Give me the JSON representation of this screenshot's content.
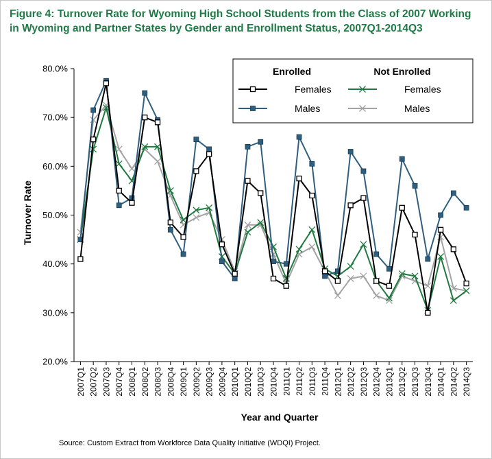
{
  "title": "Figure 4: Turnover Rate for Wyoming High School Students from the Class of 2007 Working in Wyoming and Partner States by Gender and Enrollment Status, 2007Q1-2014Q3",
  "source": "Source: Custom Extract from Workforce Data Quality Initiative (WDQI) Project.",
  "chart_data": {
    "type": "line",
    "xlabel": "Year and Quarter",
    "ylabel": "Turnover Rate",
    "ylim": [
      20,
      80
    ],
    "yticks": [
      "20.0%",
      "30.0%",
      "40.0%",
      "50.0%",
      "60.0%",
      "70.0%",
      "80.0%"
    ],
    "grid": false,
    "legend_placement": "top-right",
    "legend_groups": [
      "Enrolled",
      "Not Enrolled"
    ],
    "categories": [
      "2007Q1",
      "2007Q2",
      "2007Q3",
      "2007Q4",
      "2008Q1",
      "2008Q2",
      "2008Q3",
      "2008Q4",
      "2009Q1",
      "2009Q2",
      "2009Q3",
      "2009Q4",
      "2010Q1",
      "2010Q2",
      "2010Q3",
      "2010Q4",
      "2011Q1",
      "2011Q2",
      "2011Q3",
      "2011Q4",
      "2012Q1",
      "2012Q2",
      "2012Q3",
      "2012Q4",
      "2013Q1",
      "2013Q2",
      "2013Q3",
      "2013Q4",
      "2014Q1",
      "2014Q2",
      "2014Q3"
    ],
    "series": [
      {
        "name": "Females",
        "group": "Enrolled",
        "color": "#000000",
        "marker": "square-open",
        "values": [
          41.0,
          65.5,
          77.0,
          55.0,
          52.5,
          70.0,
          69.0,
          48.5,
          45.5,
          59.0,
          62.5,
          44.0,
          38.0,
          57.0,
          54.5,
          37.0,
          35.5,
          57.5,
          54.0,
          38.5,
          36.5,
          52.0,
          53.5,
          36.5,
          35.5,
          51.5,
          46.0,
          30.0,
          47.0,
          43.0,
          36.0
        ]
      },
      {
        "name": "Males",
        "group": "Enrolled",
        "color": "#2f5f7e",
        "marker": "square-filled",
        "values": [
          45.0,
          71.5,
          77.5,
          52.0,
          53.5,
          75.0,
          69.5,
          47.0,
          42.0,
          65.5,
          63.5,
          40.5,
          37.0,
          64.0,
          65.0,
          40.5,
          40.0,
          66.0,
          60.5,
          37.5,
          38.5,
          63.0,
          59.0,
          42.0,
          39.0,
          61.5,
          56.0,
          41.0,
          50.0,
          54.5,
          51.5
        ]
      },
      {
        "name": "Females",
        "group": "Not Enrolled",
        "color": "#1e7a3e",
        "marker": "x",
        "values": [
          45.0,
          63.5,
          72.0,
          60.5,
          57.0,
          64.0,
          64.0,
          55.0,
          49.0,
          51.0,
          51.5,
          41.5,
          38.0,
          46.5,
          48.5,
          43.5,
          37.0,
          43.0,
          47.0,
          39.0,
          37.5,
          39.5,
          44.0,
          36.5,
          33.0,
          38.0,
          37.5,
          30.5,
          41.5,
          32.5,
          34.5
        ]
      },
      {
        "name": "Males",
        "group": "Not Enrolled",
        "color": "#a3a3a3",
        "marker": "x",
        "values": [
          46.5,
          69.5,
          72.5,
          63.5,
          59.5,
          63.5,
          61.0,
          54.0,
          48.0,
          49.5,
          50.5,
          45.0,
          38.5,
          48.0,
          48.0,
          42.0,
          36.0,
          42.0,
          43.5,
          38.5,
          33.5,
          37.0,
          37.5,
          33.5,
          32.5,
          37.5,
          36.5,
          35.5,
          45.5,
          35.0,
          34.5
        ]
      }
    ]
  }
}
